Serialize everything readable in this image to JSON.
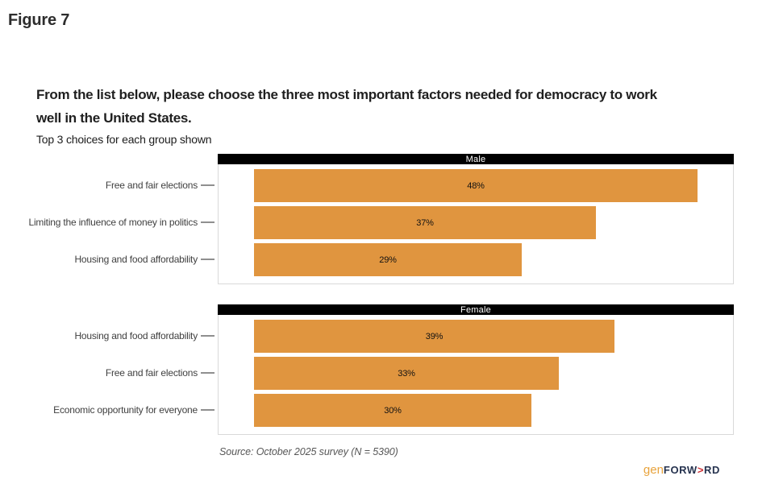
{
  "figure_label": "Figure 7",
  "chart": {
    "title": "From the list below, please choose the three most important factors needed for democracy to work well in the United States.",
    "subtitle": "Top 3 choices for each group shown",
    "source": "Source: October 2025 survey (N = 5390)"
  },
  "logo": {
    "gen": "gen",
    "forw": "FORW",
    "arrow": ">",
    "rd": "RD"
  },
  "colors": {
    "bar": "#e0953f",
    "panel_header_bg": "#000000",
    "panel_header_text": "#ffffff",
    "panel_border": "#d9d9d9",
    "axis_tick": "#8f8f8f",
    "logo_gen": "#e8a33c",
    "logo_text": "#26334f",
    "logo_arrow": "#cd2f34"
  },
  "chart_data": [
    {
      "type": "bar",
      "orientation": "horizontal",
      "group": "Male",
      "categories": [
        "Free and fair elections",
        "Limiting the influence of money in politics",
        "Housing and food affordability"
      ],
      "values": [
        48,
        37,
        29
      ],
      "value_labels": [
        "48%",
        "37%",
        "29%"
      ],
      "xlim": [
        0,
        52
      ],
      "grid": false,
      "legend": "none",
      "bar_color": "#e0953f"
    },
    {
      "type": "bar",
      "orientation": "horizontal",
      "group": "Female",
      "categories": [
        "Housing and food affordability",
        "Free and fair elections",
        "Economic opportunity for everyone"
      ],
      "values": [
        39,
        33,
        30
      ],
      "value_labels": [
        "39%",
        "33%",
        "30%"
      ],
      "xlim": [
        0,
        52
      ],
      "grid": false,
      "legend": "none",
      "bar_color": "#e0953f"
    }
  ]
}
